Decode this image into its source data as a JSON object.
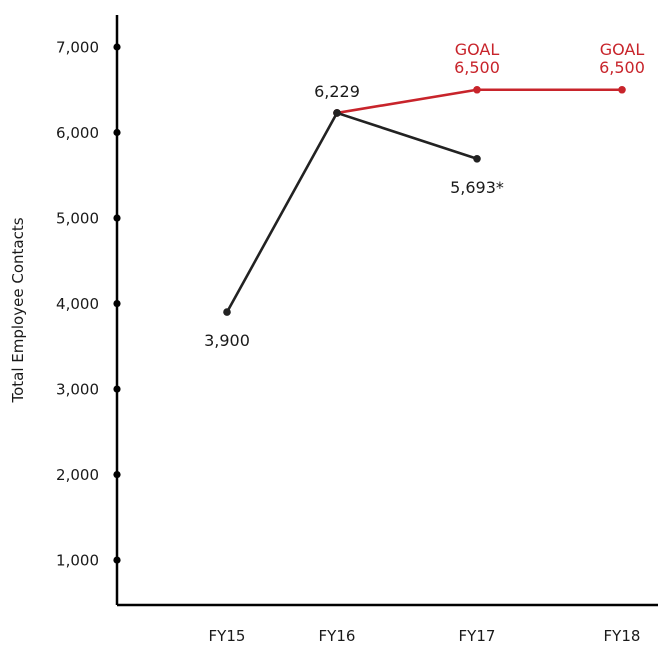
{
  "chart_data": {
    "type": "line",
    "ylabel": "Total Employee Contacts",
    "ylim": [
      0,
      7000
    ],
    "categories": [
      "FY15",
      "FY16",
      "FY17",
      "FY18"
    ],
    "y_ticks": [
      1000,
      2000,
      3000,
      4000,
      5000,
      6000,
      7000
    ],
    "y_tick_labels": [
      "1,000",
      "2,000",
      "3,000",
      "4,000",
      "5,000",
      "6,000",
      "7,000"
    ],
    "grid": false,
    "colors": {
      "actual": "#222222",
      "goal": "#c8242b",
      "axis": "#000000"
    },
    "series": [
      {
        "key": "actual",
        "points": [
          {
            "category": "FY15",
            "value": 3900,
            "label": "3,900"
          },
          {
            "category": "FY16",
            "value": 6229,
            "label": "6,229"
          },
          {
            "category": "FY17",
            "value": 5693,
            "label": "5,693*"
          }
        ]
      },
      {
        "key": "goal",
        "points": [
          {
            "category": "FY16",
            "value": 6229,
            "label": ""
          },
          {
            "category": "FY17",
            "value": 6500,
            "label": "GOAL",
            "label2": "6,500"
          },
          {
            "category": "FY18",
            "value": 6500,
            "label": "GOAL",
            "label2": "6,500"
          }
        ]
      }
    ]
  }
}
